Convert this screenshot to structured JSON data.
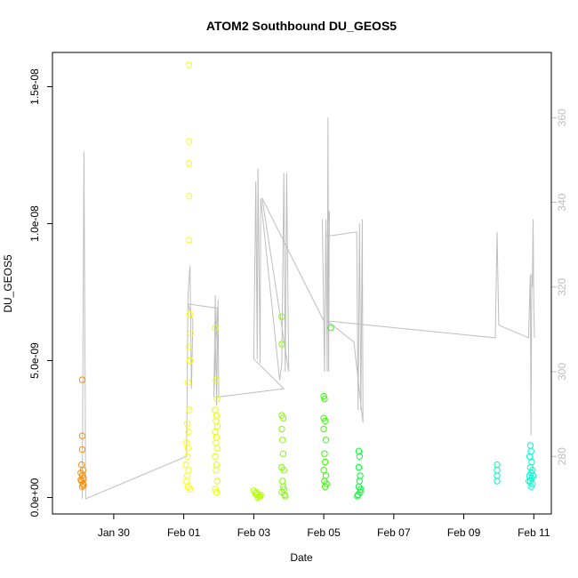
{
  "chart_data": {
    "type": "scatter",
    "title": "ATOM2 Southbound DU_GEOS5",
    "xlabel": "Date",
    "ylabel": "DU_GEOS5",
    "x_ticks": [
      "Jan 30",
      "Feb 01",
      "Feb 03",
      "Feb 05",
      "Feb 07",
      "Feb 09",
      "Feb 11"
    ],
    "x_tick_days": [
      30,
      32,
      34,
      36,
      38,
      40,
      42
    ],
    "xlim_days": [
      28.25,
      42.5
    ],
    "y_ticks": [
      "0.0e+00",
      "5.0e-09",
      "1.0e-08",
      "1.5e-08"
    ],
    "y_tick_values": [
      0,
      5e-09,
      1e-08,
      1.5e-08
    ],
    "ylim": [
      -6e-10,
      1.625e-08
    ],
    "y2_ticks": [
      "280",
      "300",
      "320",
      "340",
      "360"
    ],
    "y2_tick_values": [
      280,
      300,
      320,
      340,
      360
    ],
    "y2lim": [
      266.4,
      375.4
    ],
    "grid": false,
    "series": [
      {
        "color": "#FF8C00",
        "points": [
          [
            29.1,
            4.3e-09
          ],
          [
            29.1,
            2.25e-09
          ],
          [
            29.1,
            1.75e-09
          ],
          [
            29.08,
            1.2e-09
          ],
          [
            29.12,
            1e-09
          ],
          [
            29.06,
            9e-10
          ],
          [
            29.1,
            8e-10
          ],
          [
            29.14,
            7e-10
          ],
          [
            29.08,
            6e-10
          ],
          [
            29.12,
            5e-10
          ],
          [
            29.1,
            4e-10
          ],
          [
            29.06,
            6.5e-10
          ],
          [
            29.14,
            4.5e-10
          ]
        ]
      },
      {
        "color": "#FFFF00",
        "points": [
          [
            32.15,
            1.58e-08
          ],
          [
            32.15,
            1.3e-08
          ],
          [
            32.15,
            1.22e-08
          ],
          [
            32.15,
            1.1e-08
          ],
          [
            32.15,
            9.4e-09
          ],
          [
            32.18,
            6.7e-09
          ],
          [
            32.2,
            6e-09
          ],
          [
            32.15,
            5.5e-09
          ],
          [
            32.18,
            5e-09
          ],
          [
            32.12,
            4.2e-09
          ],
          [
            32.16,
            3.2e-09
          ],
          [
            32.1,
            2.7e-09
          ],
          [
            32.14,
            2.4e-09
          ],
          [
            32.08,
            2e-09
          ],
          [
            32.12,
            1.8e-09
          ],
          [
            32.1,
            1.5e-09
          ],
          [
            32.06,
            1.2e-09
          ],
          [
            32.14,
            1e-09
          ],
          [
            32.1,
            8e-10
          ],
          [
            32.08,
            6e-10
          ],
          [
            32.12,
            4e-10
          ],
          [
            32.18,
            3e-10
          ]
        ]
      },
      {
        "color": "#E6FF00",
        "points": [
          [
            32.9,
            6.2e-09
          ],
          [
            32.92,
            4.3e-09
          ],
          [
            32.95,
            3.6e-09
          ],
          [
            32.9,
            3.2e-09
          ],
          [
            32.94,
            3e-09
          ],
          [
            32.92,
            2.8e-09
          ],
          [
            32.96,
            2.6e-09
          ],
          [
            32.9,
            2.4e-09
          ],
          [
            32.94,
            2.2e-09
          ],
          [
            32.92,
            2e-09
          ],
          [
            32.96,
            1.8e-09
          ],
          [
            32.9,
            1.5e-09
          ],
          [
            32.94,
            1.2e-09
          ],
          [
            32.92,
            1e-09
          ],
          [
            32.96,
            6e-10
          ],
          [
            32.9,
            3e-10
          ],
          [
            32.94,
            2e-10
          ]
        ]
      },
      {
        "color": "#B3FF00",
        "points": [
          [
            34.0,
            2.5e-10
          ],
          [
            34.05,
            1.5e-10
          ],
          [
            34.1,
            1e-10
          ],
          [
            34.15,
            5e-11
          ],
          [
            34.2,
            1e-10
          ],
          [
            34.08,
            2e-10
          ],
          [
            34.12,
            0
          ],
          [
            34.18,
            5e-11
          ]
        ]
      },
      {
        "color": "#80FF00",
        "points": [
          [
            34.8,
            6.6e-09
          ],
          [
            34.8,
            5.6e-09
          ],
          [
            34.8,
            3e-09
          ],
          [
            34.84,
            2.9e-09
          ],
          [
            34.8,
            2.5e-09
          ],
          [
            34.82,
            2.1e-09
          ],
          [
            34.84,
            1.6e-09
          ],
          [
            34.8,
            1.1e-09
          ],
          [
            34.86,
            1e-09
          ],
          [
            34.82,
            6e-10
          ],
          [
            34.84,
            4e-10
          ],
          [
            34.8,
            2e-10
          ],
          [
            34.88,
            1e-10
          ],
          [
            34.9,
            5e-11
          ],
          [
            34.86,
            3e-10
          ]
        ]
      },
      {
        "color": "#33FF00",
        "points": [
          [
            36.0,
            3.7e-09
          ],
          [
            36.02,
            3.6e-09
          ],
          [
            36.0,
            2.9e-09
          ],
          [
            36.04,
            2.8e-09
          ],
          [
            36.2,
            6.2e-09
          ],
          [
            36.0,
            2.5e-09
          ],
          [
            36.06,
            2.1e-09
          ],
          [
            36.02,
            1.6e-09
          ],
          [
            36.04,
            1.3e-09
          ],
          [
            36.0,
            1e-09
          ],
          [
            36.06,
            8e-10
          ],
          [
            36.02,
            6e-10
          ],
          [
            36.04,
            4e-10
          ],
          [
            36.08,
            5e-10
          ]
        ]
      },
      {
        "color": "#00FF33",
        "points": [
          [
            37.0,
            1.7e-09
          ],
          [
            37.02,
            1.5e-09
          ],
          [
            37.0,
            1.1e-09
          ],
          [
            37.04,
            8e-10
          ],
          [
            37.02,
            6e-10
          ],
          [
            37.0,
            4e-10
          ],
          [
            37.04,
            2e-10
          ],
          [
            36.96,
            5e-11
          ],
          [
            37.06,
            3e-10
          ],
          [
            36.98,
            1e-10
          ]
        ]
      },
      {
        "color": "#00FFB3",
        "points": [
          [
            40.95,
            1.2e-09
          ],
          [
            40.95,
            1e-09
          ],
          [
            40.95,
            8e-10
          ],
          [
            40.95,
            6e-10
          ]
        ]
      },
      {
        "color": "#00FFCC",
        "points": [
          [
            41.9,
            1.9e-09
          ],
          [
            41.92,
            1.7e-09
          ],
          [
            41.88,
            1.5e-09
          ],
          [
            41.94,
            1.3e-09
          ],
          [
            41.9,
            1.1e-09
          ],
          [
            41.96,
            1e-09
          ],
          [
            41.92,
            9e-10
          ],
          [
            41.88,
            8e-10
          ],
          [
            41.94,
            7e-10
          ],
          [
            41.9,
            6e-10
          ],
          [
            41.96,
            5e-10
          ],
          [
            41.92,
            4e-10
          ],
          [
            41.86,
            6e-10
          ],
          [
            41.98,
            8e-10
          ]
        ]
      }
    ],
    "line_series": {
      "color": "#bebebe",
      "axis": "right",
      "points": [
        [
          29.1,
          270
        ],
        [
          29.15,
          352
        ],
        [
          29.2,
          270
        ],
        [
          32.08,
          280
        ],
        [
          32.12,
          318
        ],
        [
          32.18,
          325
        ],
        [
          32.22,
          296
        ],
        [
          32.26,
          312
        ],
        [
          32.12,
          316
        ],
        [
          32.96,
          315
        ],
        [
          32.86,
          294
        ],
        [
          32.9,
          318
        ],
        [
          32.94,
          292
        ],
        [
          32.98,
          317
        ],
        [
          33.0,
          294
        ],
        [
          32.96,
          294
        ],
        [
          34.86,
          296
        ],
        [
          34.0,
          303
        ],
        [
          34.06,
          345
        ],
        [
          34.1,
          303
        ],
        [
          34.12,
          348
        ],
        [
          34.18,
          302
        ],
        [
          34.2,
          341
        ],
        [
          34.74,
          298
        ],
        [
          34.8,
          302
        ],
        [
          34.86,
          347
        ],
        [
          34.9,
          300
        ],
        [
          34.94,
          347
        ],
        [
          35.0,
          300
        ],
        [
          34.24,
          341
        ],
        [
          36.0,
          312
        ],
        [
          35.96,
          336
        ],
        [
          36.02,
          300
        ],
        [
          36.06,
          336
        ],
        [
          36.1,
          300
        ],
        [
          36.12,
          360
        ],
        [
          36.14,
          300
        ],
        [
          36.16,
          338
        ],
        [
          36.1,
          332
        ],
        [
          36.94,
          333
        ],
        [
          36.98,
          291
        ],
        [
          37.02,
          335
        ],
        [
          37.06,
          291
        ],
        [
          37.1,
          336
        ],
        [
          37.12,
          288
        ],
        [
          36.86,
          307
        ],
        [
          36.1,
          312
        ],
        [
          40.9,
          308
        ],
        [
          40.95,
          333
        ],
        [
          41.0,
          311
        ],
        [
          41.85,
          308
        ],
        [
          41.9,
          323
        ],
        [
          41.92,
          285
        ],
        [
          41.94,
          323
        ],
        [
          41.96,
          320
        ],
        [
          41.98,
          336
        ],
        [
          42.0,
          315
        ],
        [
          42.02,
          308
        ]
      ]
    }
  }
}
